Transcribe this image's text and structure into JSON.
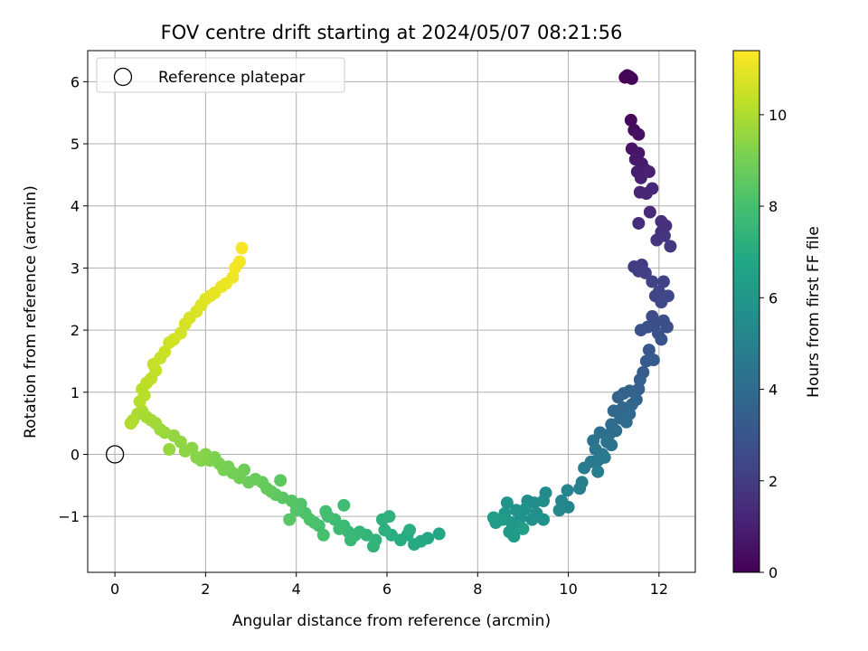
{
  "chart_data": {
    "type": "scatter",
    "title": "FOV centre drift starting at 2024/05/07 08:21:56",
    "xlabel": "Angular distance from reference (arcmin)",
    "ylabel": "Rotation from reference (arcmin)",
    "xlim": [
      -0.6,
      12.8
    ],
    "ylim": [
      -1.9,
      6.5
    ],
    "xticks": [
      "0",
      "2",
      "4",
      "6",
      "8",
      "10",
      "12"
    ],
    "yticks": [
      "−1",
      "0",
      "1",
      "2",
      "3",
      "4",
      "5",
      "6"
    ],
    "grid": true,
    "legend": {
      "position": "top-left",
      "entries": [
        "Reference platepar"
      ]
    },
    "reference_point": {
      "x": 0,
      "y": 0
    },
    "colorbar": {
      "label": "Hours from first FF file",
      "colormap": "viridis",
      "range": [
        0,
        11.4
      ],
      "ticks": [
        "0",
        "2",
        "4",
        "6",
        "8",
        "10"
      ]
    },
    "series": [
      {
        "points": [
          [
            11.35,
            6.08,
            0.0
          ],
          [
            11.25,
            6.07,
            0.05
          ],
          [
            11.4,
            6.05,
            0.1
          ],
          [
            11.3,
            6.1,
            0.15
          ],
          [
            11.38,
            5.38,
            0.3
          ],
          [
            11.45,
            5.22,
            0.4
          ],
          [
            11.55,
            5.15,
            0.45
          ],
          [
            11.4,
            4.92,
            0.6
          ],
          [
            11.55,
            4.85,
            0.7
          ],
          [
            11.48,
            4.75,
            0.75
          ],
          [
            11.62,
            4.68,
            0.8
          ],
          [
            11.52,
            4.55,
            0.9
          ],
          [
            11.7,
            4.58,
            0.95
          ],
          [
            11.6,
            4.45,
            1.0
          ],
          [
            11.78,
            4.55,
            1.05
          ],
          [
            11.58,
            4.22,
            1.15
          ],
          [
            11.72,
            4.2,
            1.2
          ],
          [
            11.85,
            4.28,
            1.25
          ],
          [
            11.8,
            3.9,
            1.35
          ],
          [
            11.55,
            3.72,
            1.45
          ],
          [
            12.05,
            3.75,
            1.55
          ],
          [
            12.15,
            3.68,
            1.6
          ],
          [
            12.05,
            3.58,
            1.65
          ],
          [
            11.95,
            3.45,
            1.7
          ],
          [
            12.12,
            3.52,
            1.75
          ],
          [
            12.25,
            3.35,
            1.8
          ],
          [
            11.45,
            3.02,
            1.95
          ],
          [
            11.62,
            3.05,
            2.0
          ],
          [
            11.55,
            2.95,
            2.05
          ],
          [
            11.7,
            2.92,
            2.1
          ],
          [
            11.85,
            2.78,
            2.2
          ],
          [
            12.1,
            2.78,
            2.25
          ],
          [
            12.0,
            2.62,
            2.3
          ],
          [
            11.92,
            2.55,
            2.35
          ],
          [
            12.2,
            2.55,
            2.4
          ],
          [
            12.05,
            2.45,
            2.45
          ],
          [
            11.85,
            2.22,
            2.6
          ],
          [
            11.92,
            2.12,
            2.65
          ],
          [
            12.1,
            2.15,
            2.7
          ],
          [
            12.18,
            2.05,
            2.75
          ],
          [
            11.75,
            2.05,
            2.8
          ],
          [
            11.6,
            2.0,
            2.85
          ],
          [
            11.98,
            1.95,
            2.9
          ],
          [
            12.05,
            1.85,
            2.95
          ],
          [
            11.78,
            1.68,
            3.1
          ],
          [
            11.88,
            1.52,
            3.2
          ],
          [
            11.72,
            1.5,
            3.25
          ],
          [
            11.65,
            1.32,
            3.35
          ],
          [
            11.58,
            1.2,
            3.4
          ],
          [
            11.55,
            1.05,
            3.5
          ],
          [
            11.35,
            1.02,
            3.55
          ],
          [
            11.22,
            0.98,
            3.6
          ],
          [
            11.1,
            0.92,
            3.65
          ],
          [
            11.5,
            0.88,
            3.7
          ],
          [
            11.4,
            0.8,
            3.75
          ],
          [
            11.2,
            0.75,
            3.8
          ],
          [
            11.0,
            0.7,
            3.85
          ],
          [
            11.35,
            0.65,
            3.9
          ],
          [
            11.15,
            0.58,
            3.95
          ],
          [
            11.28,
            0.52,
            4.0
          ],
          [
            10.95,
            0.48,
            4.05
          ],
          [
            11.05,
            0.38,
            4.1
          ],
          [
            10.9,
            0.32,
            4.15
          ],
          [
            10.7,
            0.35,
            4.2
          ],
          [
            10.85,
            0.2,
            4.3
          ],
          [
            10.95,
            0.15,
            4.35
          ],
          [
            10.55,
            0.22,
            4.4
          ],
          [
            10.6,
            0.08,
            4.45
          ],
          [
            10.75,
            0.0,
            4.5
          ],
          [
            10.65,
            -0.1,
            4.55
          ],
          [
            10.5,
            -0.12,
            4.6
          ],
          [
            10.8,
            -0.05,
            4.65
          ],
          [
            10.35,
            -0.22,
            4.75
          ],
          [
            10.65,
            -0.28,
            4.8
          ],
          [
            10.3,
            -0.45,
            4.9
          ],
          [
            10.25,
            -0.55,
            5.0
          ],
          [
            9.98,
            -0.58,
            5.1
          ],
          [
            9.85,
            -0.75,
            5.2
          ],
          [
            10.0,
            -0.85,
            5.25
          ],
          [
            9.8,
            -0.9,
            5.3
          ],
          [
            9.5,
            -0.62,
            5.4
          ],
          [
            9.45,
            -0.75,
            5.45
          ],
          [
            9.25,
            -0.78,
            5.5
          ],
          [
            9.1,
            -0.75,
            5.55
          ],
          [
            9.3,
            -0.95,
            5.6
          ],
          [
            9.2,
            -1.05,
            5.65
          ],
          [
            9.45,
            -1.05,
            5.7
          ],
          [
            9.05,
            -0.88,
            5.75
          ],
          [
            8.95,
            -1.02,
            5.8
          ],
          [
            8.85,
            -0.9,
            5.85
          ],
          [
            8.65,
            -0.78,
            5.9
          ],
          [
            8.6,
            -0.95,
            5.95
          ],
          [
            8.75,
            -1.1,
            6.0
          ],
          [
            8.9,
            -1.15,
            6.05
          ],
          [
            8.7,
            -1.25,
            6.1
          ],
          [
            8.8,
            -1.32,
            6.15
          ],
          [
            8.55,
            -1.05,
            6.2
          ],
          [
            8.4,
            -1.1,
            6.25
          ],
          [
            8.35,
            -1.02,
            6.3
          ],
          [
            9.0,
            -1.2,
            6.35
          ],
          [
            7.15,
            -1.28,
            6.8
          ],
          [
            6.9,
            -1.35,
            6.85
          ],
          [
            6.75,
            -1.4,
            6.9
          ],
          [
            6.6,
            -1.45,
            6.95
          ],
          [
            6.45,
            -1.3,
            7.0
          ],
          [
            6.3,
            -1.38,
            7.05
          ],
          [
            6.5,
            -1.22,
            7.1
          ],
          [
            6.1,
            -1.3,
            7.15
          ],
          [
            5.95,
            -1.22,
            7.2
          ],
          [
            5.9,
            -1.05,
            7.25
          ],
          [
            6.05,
            -1.0,
            7.3
          ],
          [
            5.75,
            -1.38,
            7.35
          ],
          [
            5.7,
            -1.48,
            7.4
          ],
          [
            5.55,
            -1.3,
            7.45
          ],
          [
            5.4,
            -1.25,
            7.5
          ],
          [
            5.3,
            -1.3,
            7.55
          ],
          [
            5.15,
            -1.25,
            7.6
          ],
          [
            5.2,
            -1.38,
            7.65
          ],
          [
            5.05,
            -1.15,
            7.7
          ],
          [
            4.95,
            -1.2,
            7.75
          ],
          [
            5.05,
            -0.82,
            7.8
          ],
          [
            4.85,
            -1.05,
            7.85
          ],
          [
            4.7,
            -1.0,
            7.9
          ],
          [
            4.65,
            -0.92,
            7.95
          ],
          [
            4.5,
            -1.15,
            8.0
          ],
          [
            4.6,
            -1.3,
            8.05
          ],
          [
            4.4,
            -1.1,
            8.1
          ],
          [
            4.3,
            -1.05,
            8.15
          ],
          [
            4.2,
            -0.95,
            8.2
          ],
          [
            4.1,
            -0.8,
            8.25
          ],
          [
            4.0,
            -0.9,
            8.3
          ],
          [
            3.9,
            -0.75,
            8.35
          ],
          [
            3.85,
            -1.05,
            8.4
          ],
          [
            3.7,
            -0.7,
            8.45
          ],
          [
            3.65,
            -0.42,
            8.5
          ],
          [
            3.55,
            -0.65,
            8.55
          ],
          [
            3.45,
            -0.6,
            8.6
          ],
          [
            3.35,
            -0.55,
            8.65
          ],
          [
            3.25,
            -0.45,
            8.7
          ],
          [
            3.1,
            -0.4,
            8.75
          ],
          [
            2.95,
            -0.45,
            8.8
          ],
          [
            2.85,
            -0.25,
            8.85
          ],
          [
            2.75,
            -0.38,
            8.9
          ],
          [
            2.6,
            -0.3,
            8.95
          ],
          [
            2.5,
            -0.2,
            9.0
          ],
          [
            2.4,
            -0.25,
            9.05
          ],
          [
            2.3,
            -0.15,
            9.1
          ],
          [
            2.2,
            -0.05,
            9.15
          ],
          [
            2.1,
            -0.1,
            9.2
          ],
          [
            2.0,
            0.0,
            9.25
          ],
          [
            1.9,
            -0.1,
            9.3
          ],
          [
            1.8,
            -0.05,
            9.35
          ],
          [
            1.7,
            0.1,
            9.4
          ],
          [
            1.55,
            0.05,
            9.45
          ],
          [
            1.45,
            0.2,
            9.5
          ],
          [
            1.3,
            0.3,
            9.55
          ],
          [
            1.2,
            0.08,
            9.6
          ],
          [
            1.1,
            0.35,
            9.65
          ],
          [
            1.0,
            0.4,
            9.7
          ],
          [
            0.9,
            0.5,
            9.75
          ],
          [
            0.8,
            0.55,
            9.8
          ],
          [
            0.7,
            0.6,
            9.85
          ],
          [
            0.6,
            0.7,
            9.9
          ],
          [
            0.5,
            0.65,
            9.95
          ],
          [
            0.4,
            0.55,
            10.0
          ],
          [
            0.35,
            0.5,
            10.05
          ],
          [
            0.55,
            0.85,
            10.1
          ],
          [
            0.65,
            0.95,
            10.15
          ],
          [
            0.6,
            1.05,
            10.2
          ],
          [
            0.7,
            1.15,
            10.25
          ],
          [
            0.8,
            1.22,
            10.3
          ],
          [
            0.9,
            1.35,
            10.35
          ],
          [
            0.85,
            1.45,
            10.4
          ],
          [
            1.0,
            1.55,
            10.45
          ],
          [
            1.1,
            1.65,
            10.5
          ],
          [
            1.2,
            1.8,
            10.55
          ],
          [
            1.3,
            1.85,
            10.6
          ],
          [
            1.45,
            1.95,
            10.65
          ],
          [
            1.55,
            2.1,
            10.7
          ],
          [
            1.65,
            2.2,
            10.75
          ],
          [
            1.8,
            2.3,
            10.8
          ],
          [
            1.9,
            2.4,
            10.85
          ],
          [
            2.0,
            2.5,
            10.9
          ],
          [
            2.1,
            2.55,
            10.95
          ],
          [
            2.2,
            2.6,
            11.0
          ],
          [
            2.35,
            2.7,
            11.05
          ],
          [
            2.45,
            2.75,
            11.1
          ],
          [
            2.6,
            2.85,
            11.15
          ],
          [
            2.65,
            3.0,
            11.2
          ],
          [
            2.75,
            3.1,
            11.25
          ],
          [
            2.8,
            3.32,
            11.3
          ]
        ]
      }
    ]
  }
}
